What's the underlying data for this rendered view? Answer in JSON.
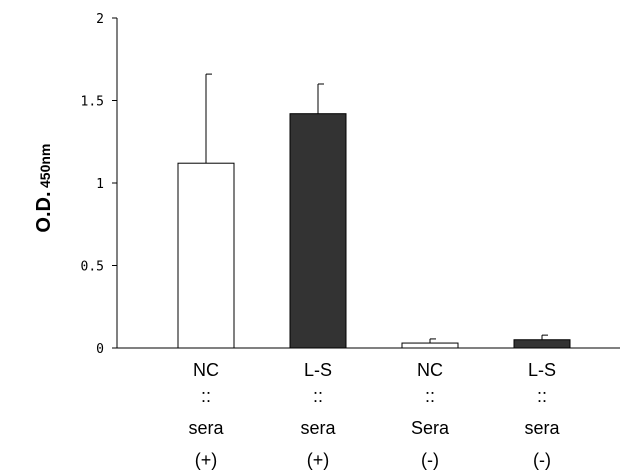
{
  "chart_data": {
    "type": "bar",
    "ylabel": "O.D.",
    "ylabel_subscript": "450nm",
    "ylim": [
      0,
      2
    ],
    "yticks": [
      "0",
      "0.5",
      "1",
      "1.5",
      "2"
    ],
    "ytick_values": [
      0,
      0.5,
      1,
      1.5,
      2
    ],
    "grid": false,
    "categories": [
      [
        "NC",
        "::",
        "sera",
        "(+)"
      ],
      [
        "L-S",
        "::",
        "sera",
        "(+)"
      ],
      [
        "NC",
        "::",
        "Sera",
        "(-)"
      ],
      [
        "L-S",
        "::",
        "sera",
        "(-)"
      ]
    ],
    "values": [
      1.12,
      1.42,
      0.03,
      0.05
    ],
    "errors": [
      0.54,
      0.18,
      0.025,
      0.028
    ],
    "bar_colors": [
      "#ffffff",
      "#333333",
      "#ffffff",
      "#333333"
    ]
  }
}
